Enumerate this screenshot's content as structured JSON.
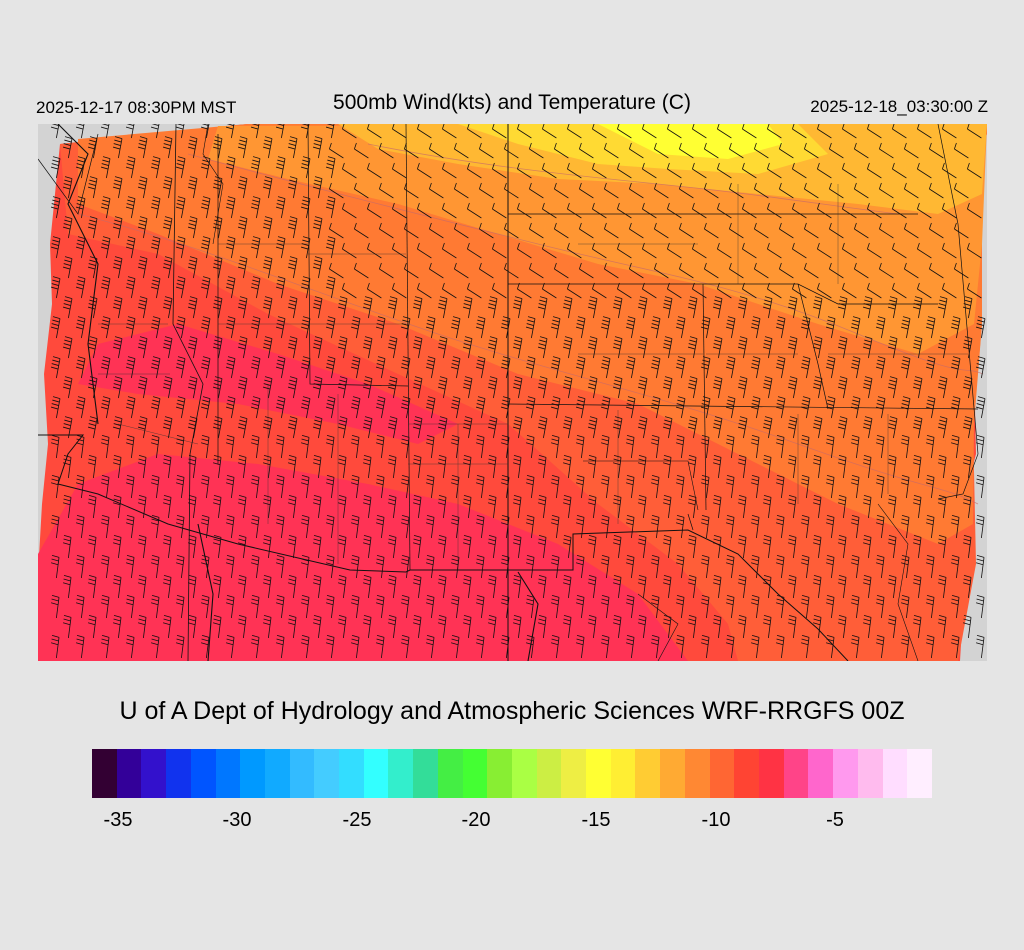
{
  "header": {
    "valid_time": "2025-12-17 08:30PM MST",
    "title": "500mb Wind(kts) and Temperature (C)",
    "init_time": "2025-12-18_03:30:00 Z"
  },
  "footer": {
    "credit": "U of A Dept of Hydrology and Atmospheric Sciences WRF-RRGFS 00Z"
  },
  "colorbar": {
    "colors": [
      "#330033",
      "#330099",
      "#3311cc",
      "#1133ee",
      "#0055ff",
      "#0077ff",
      "#0099ff",
      "#11aaff",
      "#33bbff",
      "#44ccff",
      "#33ddff",
      "#33ffff",
      "#33eecc",
      "#33dd99",
      "#44ee44",
      "#44ff33",
      "#88ee33",
      "#aaff44",
      "#ccee44",
      "#eeee44",
      "#ffff33",
      "#ffee33",
      "#ffcc33",
      "#ffaa33",
      "#ff8833",
      "#ff6633",
      "#ff4433",
      "#ff3344",
      "#ff4488",
      "#ff66cc",
      "#ff99ee",
      "#ffbbee",
      "#ffddff",
      "#ffeeff"
    ],
    "labels": [
      "-35",
      "-30",
      "-25",
      "-20",
      "-15",
      "-10",
      "-5"
    ]
  },
  "map": {
    "field": "500mb temperature (C) with wind barbs (kts)",
    "no_data_color": "#d3d3d3",
    "temperature_bands": [
      {
        "range_c": "-8 to -7",
        "color": "#ff3355"
      },
      {
        "range_c": "-9 to -8",
        "color": "#ff4444"
      },
      {
        "range_c": "-10 to -9",
        "color": "#ff5a3a"
      },
      {
        "range_c": "-11 to -10",
        "color": "#ff7a33"
      },
      {
        "range_c": "-12 to -11",
        "color": "#ff9a33"
      },
      {
        "range_c": "-13 to -12",
        "color": "#ffbb33"
      },
      {
        "range_c": "-14 to -13",
        "color": "#ffdd33"
      },
      {
        "range_c": "-15 to -14",
        "color": "#ffff33"
      }
    ]
  }
}
